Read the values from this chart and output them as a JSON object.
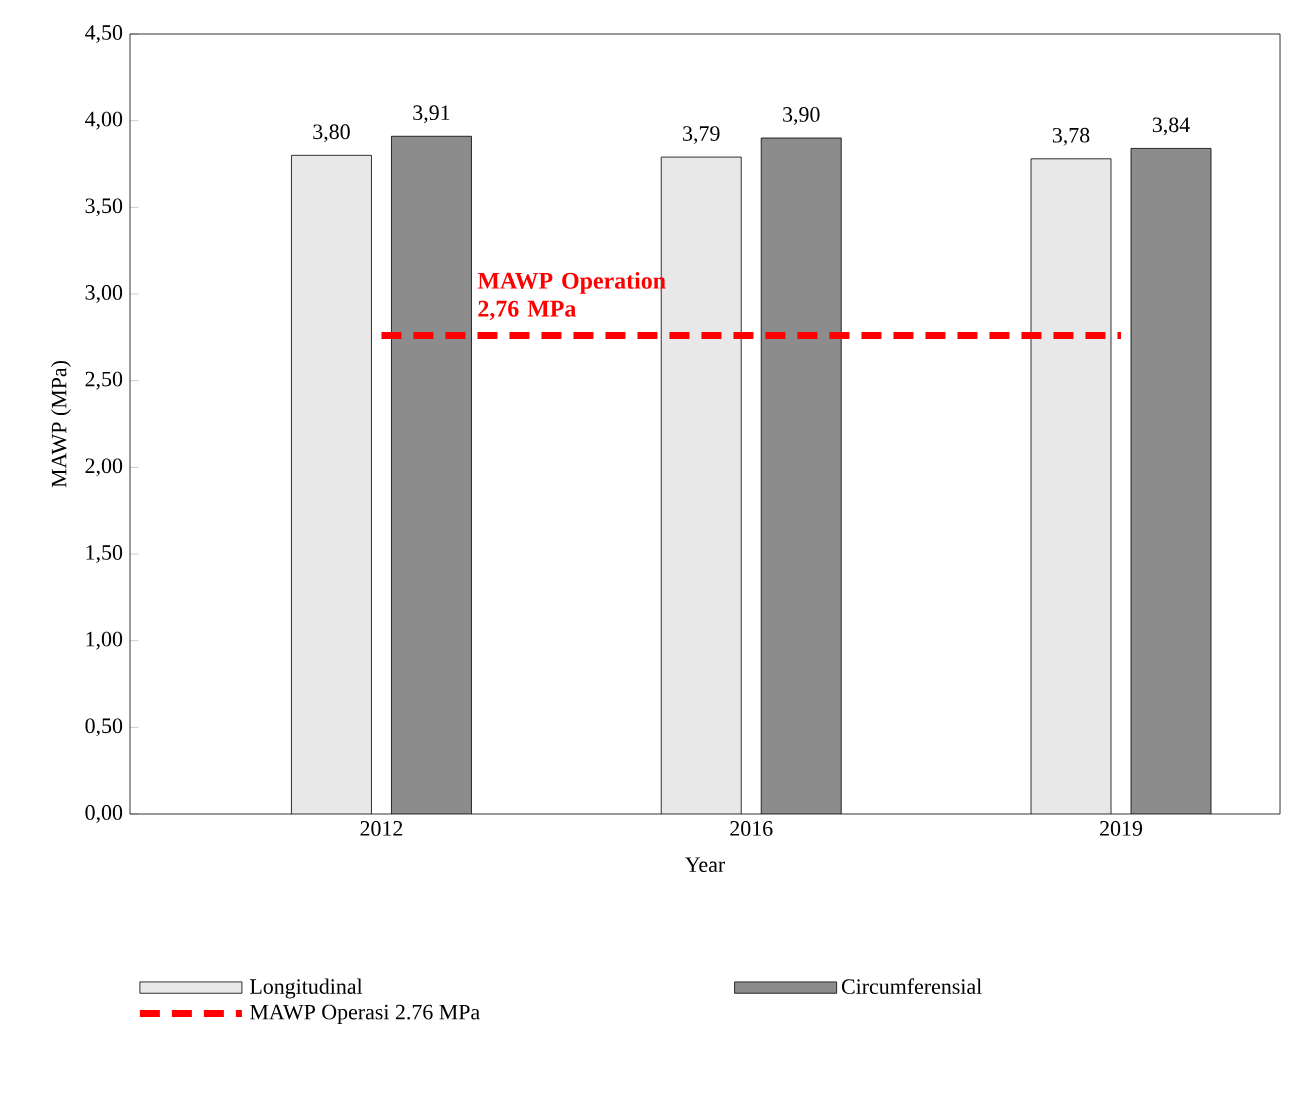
{
  "chart_data": {
    "type": "bar",
    "xlabel": "Year",
    "ylabel": "MAWP (MPa)",
    "categories": [
      "2012",
      "2016",
      "2019"
    ],
    "series": [
      {
        "name": "Longitudinal",
        "color": "#e8e8e8",
        "values": [
          3.8,
          3.79,
          3.78
        ],
        "value_labels": [
          "3,80",
          "3,79",
          "3,78"
        ]
      },
      {
        "name": "Circumferensial",
        "color": "#8c8c8c",
        "values": [
          3.91,
          3.9,
          3.84
        ],
        "value_labels": [
          "3,91",
          "3,90",
          "3,84"
        ]
      },
      {
        "name": "MAWP Operasi 2.76 MPa",
        "type": "line",
        "color": "#ff0000",
        "line_style": "dashed",
        "marker": "none",
        "values": [
          2.76,
          2.76,
          2.76
        ]
      }
    ],
    "annotations": [
      "MAWP Operation 2,76 MPa"
    ],
    "ylim": [
      0,
      4.5
    ],
    "yticks": [
      {
        "value": 0,
        "label": "0,00"
      },
      {
        "value": 0.5,
        "label": "0,50"
      },
      {
        "value": 1,
        "label": "1,00"
      },
      {
        "value": 1.5,
        "label": "1,50"
      },
      {
        "value": 2,
        "label": "2,00"
      },
      {
        "value": 2.5,
        "label": "2,50"
      },
      {
        "value": 3,
        "label": "3,00"
      },
      {
        "value": 3.5,
        "label": "3,50"
      },
      {
        "value": 4,
        "label": "4,00"
      },
      {
        "value": 4.5,
        "label": "4,50"
      }
    ],
    "grid": false,
    "legend": "bottom"
  }
}
